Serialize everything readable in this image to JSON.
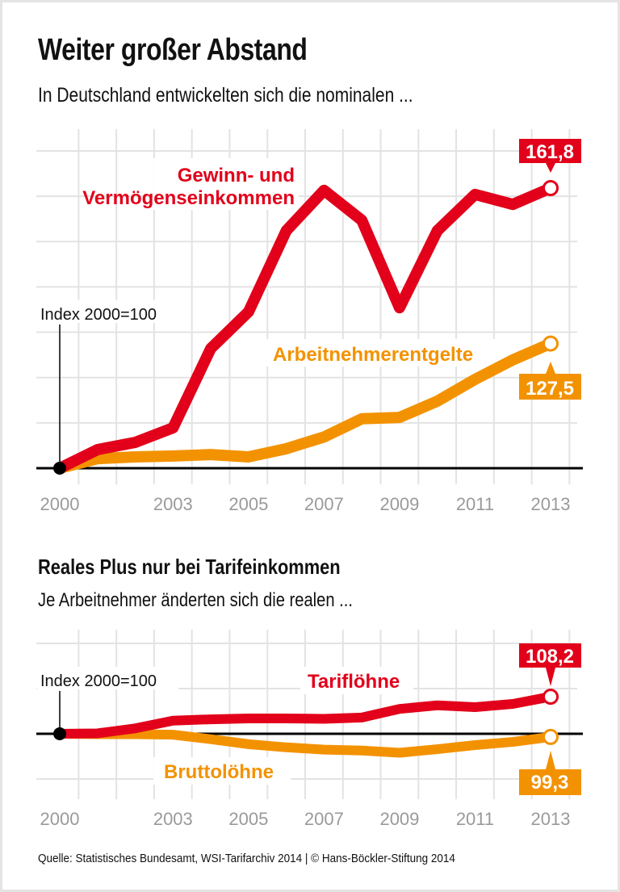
{
  "title": "Weiter großer Abstand",
  "subtitle": "In Deutschland entwickelten sich die nominalen ...",
  "title2": "Reales Plus nur bei Tarifeinkommen",
  "subtitle2": "Je Arbeitnehmer änderten sich die realen ...",
  "source": "Quelle: Statistisches Bundesamt, WSI-Tarifarchiv 2014 | © Hans-Böckler-Stiftung 2014",
  "colors": {
    "red": "#e2001a",
    "orange": "#f39200",
    "grid": "#e3e3e3",
    "tick": "#9a9a9a"
  },
  "chart_data": [
    {
      "type": "line",
      "index_label": "Index 2000=100",
      "x": [
        2000,
        2001,
        2002,
        2003,
        2004,
        2005,
        2006,
        2007,
        2008,
        2009,
        2010,
        2011,
        2012,
        2013
      ],
      "xticks": [
        "2000",
        "2003",
        "2005",
        "2007",
        "2009",
        "2011",
        "2013"
      ],
      "ylim": [
        100,
        171
      ],
      "grid": true,
      "series": [
        {
          "name_lines": [
            "Gewinn- und",
            "Vermögenseinkommen"
          ],
          "color": "#e2001a",
          "end_label": "161,8",
          "values": [
            100,
            104.1,
            105.7,
            108.9,
            126.4,
            134.5,
            152.4,
            161.3,
            154.7,
            135.4,
            152.4,
            160.4,
            158.2,
            161.8
          ]
        },
        {
          "name_lines": [
            "Arbeitnehmerentgelte"
          ],
          "color": "#f39200",
          "end_label": "127,5",
          "values": [
            100,
            102.1,
            102.5,
            102.7,
            103.0,
            102.5,
            104.3,
            106.9,
            110.9,
            111.2,
            114.8,
            119.6,
            123.9,
            127.5
          ]
        }
      ]
    },
    {
      "type": "line",
      "index_label": "Index 2000=100",
      "x": [
        2000,
        2001,
        2002,
        2003,
        2004,
        2005,
        2006,
        2007,
        2008,
        2009,
        2010,
        2011,
        2012,
        2013
      ],
      "xticks": [
        "2000",
        "2003",
        "2005",
        "2007",
        "2009",
        "2011",
        "2013"
      ],
      "ylim": [
        88,
        122
      ],
      "grid": true,
      "series": [
        {
          "name_lines": [
            "Tariflöhne"
          ],
          "color": "#e2001a",
          "end_label": "108,2",
          "values": [
            100,
            100.1,
            101.2,
            102.9,
            103.2,
            103.4,
            103.4,
            103.3,
            103.6,
            105.5,
            106.3,
            105.9,
            106.6,
            108.2
          ]
        },
        {
          "name_lines": [
            "Bruttolöhne"
          ],
          "color": "#f39200",
          "end_label": "99,3",
          "values": [
            100,
            99.9,
            99.9,
            99.8,
            98.8,
            97.7,
            97.0,
            96.5,
            96.3,
            95.8,
            96.6,
            97.5,
            98.2,
            99.3
          ]
        }
      ]
    }
  ]
}
